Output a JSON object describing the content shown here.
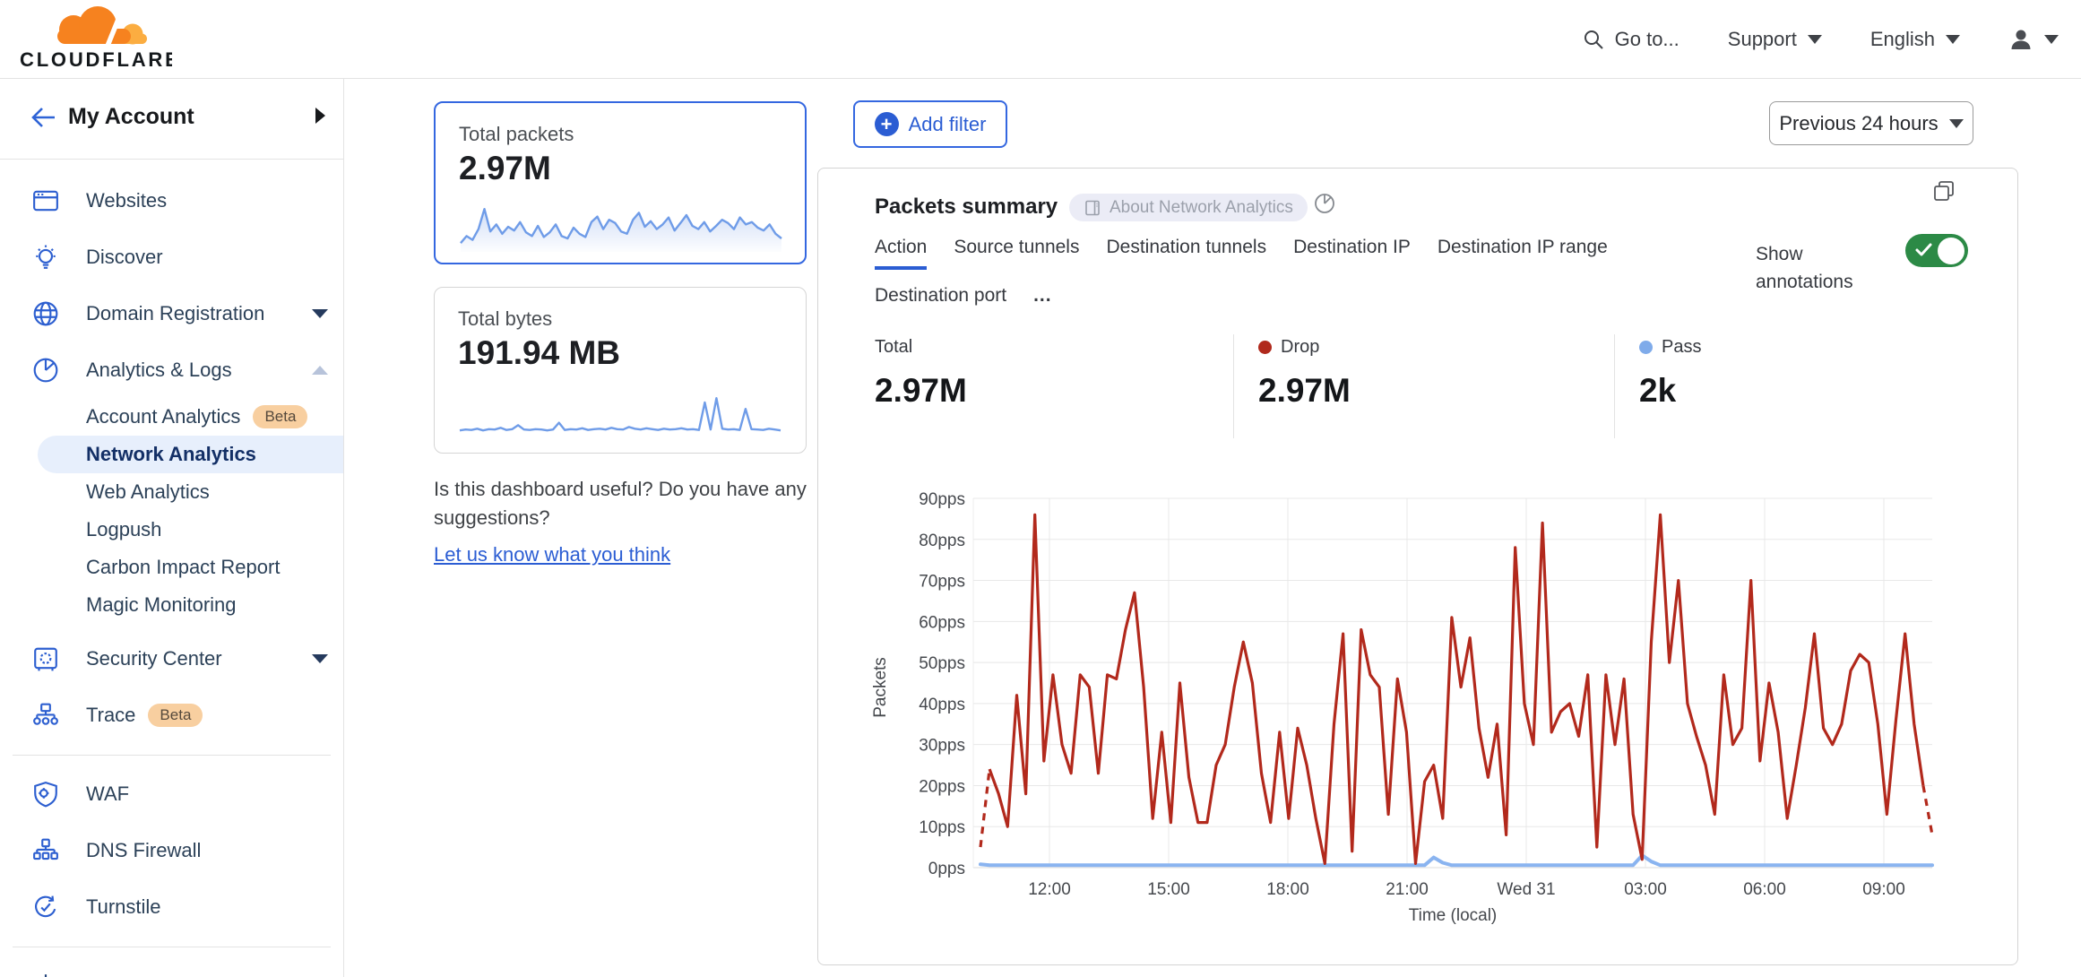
{
  "header": {
    "brand": "CLOUDFLARE",
    "goto": "Go to...",
    "support": "Support",
    "language": "English"
  },
  "sidebar": {
    "account_label": "My Account",
    "items": [
      {
        "label": "Websites"
      },
      {
        "label": "Discover"
      },
      {
        "label": "Domain Registration"
      },
      {
        "label": "Analytics & Logs"
      },
      {
        "label": "Security Center"
      },
      {
        "label": "Trace",
        "badge": "Beta"
      },
      {
        "label": "WAF"
      },
      {
        "label": "DNS Firewall"
      },
      {
        "label": "Turnstile"
      }
    ],
    "analytics_subitems": [
      {
        "label": "Account Analytics",
        "badge": "Beta"
      },
      {
        "label": "Network Analytics",
        "selected": true
      },
      {
        "label": "Web Analytics"
      },
      {
        "label": "Logpush"
      },
      {
        "label": "Carbon Impact Report"
      },
      {
        "label": "Magic Monitoring"
      }
    ]
  },
  "summary_cards": [
    {
      "title": "Total packets",
      "value": "2.97M",
      "sparkline": [
        15,
        30,
        22,
        45,
        88,
        40,
        55,
        35,
        50,
        42,
        60,
        38,
        30,
        52,
        28,
        38,
        55,
        30,
        25,
        48,
        35,
        28,
        60,
        72,
        45,
        65,
        58,
        40,
        35,
        65,
        80,
        50,
        62,
        45,
        55,
        70,
        42,
        58,
        75,
        52,
        45,
        60,
        40,
        52,
        65,
        58,
        45,
        70,
        55,
        60,
        48,
        42,
        55,
        35,
        25
      ]
    },
    {
      "title": "Total bytes",
      "value": "191.94 MB",
      "sparkline": [
        10,
        12,
        11,
        14,
        10,
        13,
        12,
        16,
        11,
        13,
        22,
        12,
        11,
        13,
        12,
        10,
        12,
        28,
        11,
        13,
        12,
        15,
        11,
        13,
        14,
        12,
        16,
        13,
        12,
        18,
        14,
        12,
        15,
        13,
        11,
        14,
        12,
        13,
        15,
        12,
        13,
        11,
        75,
        12,
        85,
        14,
        12,
        13,
        11,
        60,
        13,
        12,
        11,
        14,
        12,
        10
      ]
    }
  ],
  "feedback": {
    "question": "Is this dashboard useful? Do you have any suggestions?",
    "link": "Let us know what you think"
  },
  "toolbar": {
    "add_filter": "Add filter",
    "time_range": "Previous 24 hours"
  },
  "panel": {
    "title": "Packets summary",
    "badge": "About Network Analytics",
    "tabs": [
      "Action",
      "Source tunnels",
      "Destination tunnels",
      "Destination IP",
      "Destination IP range",
      "Destination port"
    ],
    "more_label": "...",
    "show_annotations": "Show annotations",
    "stats": [
      {
        "label": "Total",
        "value": "2.97M"
      },
      {
        "label": "Drop",
        "value": "2.97M",
        "color": "#b0291c"
      },
      {
        "label": "Pass",
        "value": "2k",
        "color": "#7fabea"
      }
    ]
  },
  "chart_data": {
    "type": "line",
    "title": "Packets summary",
    "xlabel": "Time (local)",
    "ylabel": "Packets",
    "ylim": [
      0,
      90
    ],
    "ytick_labels": [
      "0pps",
      "10pps",
      "20pps",
      "30pps",
      "40pps",
      "50pps",
      "60pps",
      "70pps",
      "80pps",
      "90pps"
    ],
    "xticks": [
      "12:00",
      "15:00",
      "18:00",
      "21:00",
      "Wed 31",
      "03:00",
      "06:00",
      "09:00"
    ],
    "grid": true,
    "legend": "none",
    "series": [
      {
        "name": "Drop",
        "color": "#b2291c",
        "values": [
          5,
          24,
          18,
          10,
          42,
          18,
          86,
          26,
          47,
          30,
          23,
          47,
          44,
          23,
          47,
          46,
          58,
          67,
          44,
          12,
          33,
          11,
          45,
          22,
          11,
          11,
          25,
          30,
          44,
          55,
          45,
          23,
          11,
          33,
          12,
          34,
          25,
          12,
          1,
          35,
          57,
          4,
          58,
          47,
          44,
          13,
          46,
          33,
          1,
          21,
          25,
          12,
          61,
          44,
          56,
          34,
          22,
          35,
          8,
          78,
          40,
          30,
          84,
          33,
          38,
          40,
          32,
          47,
          5,
          47,
          30,
          46,
          13,
          2,
          55,
          86,
          50,
          70,
          40,
          32,
          25,
          13,
          47,
          30,
          34,
          70,
          26,
          45,
          33,
          12,
          25,
          39,
          57,
          34,
          30,
          35,
          48,
          52,
          50,
          35,
          13,
          36,
          57,
          35,
          20,
          8
        ]
      },
      {
        "name": "Pass",
        "color": "#8ab4f0",
        "values": [
          0.8,
          0.6,
          0.6,
          0.6,
          0.6,
          0.6,
          0.6,
          0.6,
          0.6,
          0.6,
          0.6,
          0.6,
          0.6,
          0.6,
          0.6,
          0.6,
          0.6,
          0.6,
          0.6,
          0.6,
          0.6,
          0.6,
          0.6,
          0.6,
          0.6,
          0.6,
          0.6,
          0.6,
          0.6,
          0.6,
          0.6,
          0.6,
          0.6,
          0.6,
          0.6,
          0.6,
          0.6,
          0.6,
          0.6,
          0.6,
          0.6,
          0.6,
          0.6,
          0.6,
          0.6,
          0.6,
          0.6,
          0.6,
          0.6,
          0.6,
          2.5,
          1.2,
          0.6,
          0.6,
          0.6,
          0.6,
          0.6,
          0.6,
          0.6,
          0.6,
          0.6,
          0.6,
          0.6,
          0.6,
          0.6,
          0.6,
          0.6,
          0.6,
          0.6,
          0.6,
          0.6,
          0.6,
          0.6,
          3,
          1.5,
          0.6,
          0.6,
          0.6,
          0.6,
          0.6,
          0.6,
          0.6,
          0.6,
          0.6,
          0.6,
          0.6,
          0.6,
          0.6,
          0.6,
          0.6,
          0.6,
          0.6,
          0.6,
          0.6,
          0.6,
          0.6,
          0.6,
          0.6,
          0.6,
          0.6,
          0.6,
          0.6,
          0.6,
          0.6,
          0.6,
          0.6
        ]
      }
    ]
  }
}
